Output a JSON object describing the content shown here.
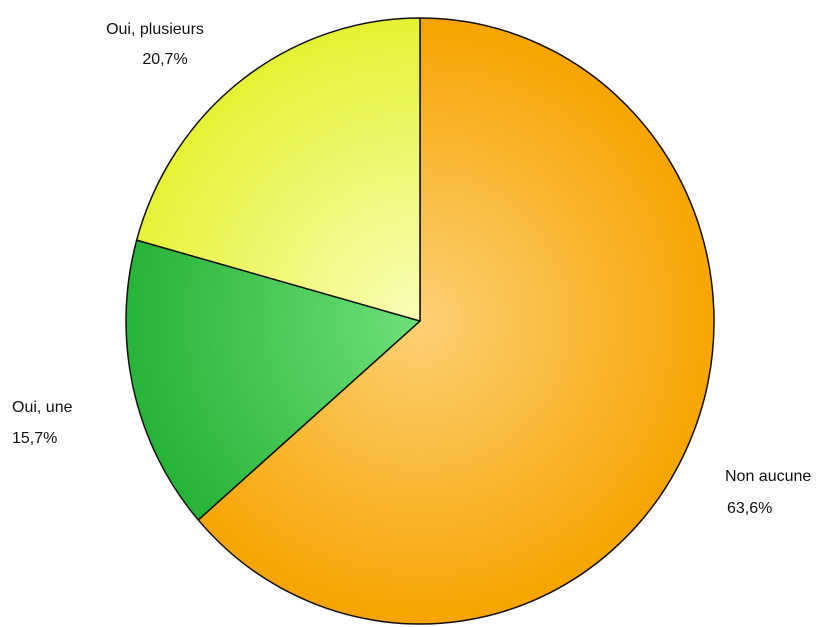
{
  "chart_data": {
    "type": "pie",
    "title": "",
    "slices": [
      {
        "label": "Non aucune",
        "value": 63.6,
        "value_label": "63,6%",
        "color_light": "#fdd074",
        "color_dark": "#f7a400"
      },
      {
        "label": "Oui, une",
        "value": 15.7,
        "value_label": "15,7%",
        "color_light": "#6fe07a",
        "color_dark": "#24b335"
      },
      {
        "label": "Oui, plusieurs",
        "value": 20.7,
        "value_label": "20,7%",
        "color_light": "#fbfdb8",
        "color_dark": "#e4f232"
      }
    ],
    "start_angle": "12 o'clock",
    "direction": "clockwise",
    "legend": "none",
    "border_color": "#111111"
  }
}
